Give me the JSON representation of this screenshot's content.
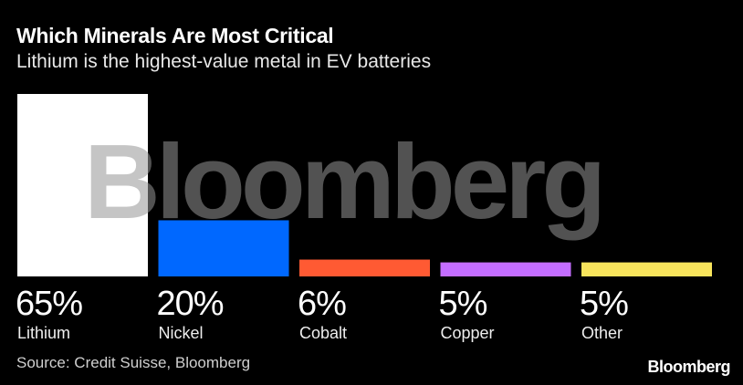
{
  "chart_data": {
    "type": "bar",
    "title": "Which Minerals Are Most Critical",
    "subtitle": "Lithium is the highest-value metal in EV batteries",
    "categories": [
      "Lithium",
      "Nickel",
      "Cobalt",
      "Copper",
      "Other"
    ],
    "values": [
      65,
      20,
      6,
      5,
      5
    ],
    "value_labels": [
      "65%",
      "20%",
      "6%",
      "5%",
      "5%"
    ],
    "colors": [
      "#ffffff",
      "#0068ff",
      "#ff5a33",
      "#c46dff",
      "#f8e45c"
    ],
    "unit": "%",
    "ylim": [
      0,
      65
    ],
    "grid": false,
    "source": "Source: Credit Suisse, Bloomberg"
  },
  "brand": "Bloomberg",
  "watermark": "Bloomberg"
}
